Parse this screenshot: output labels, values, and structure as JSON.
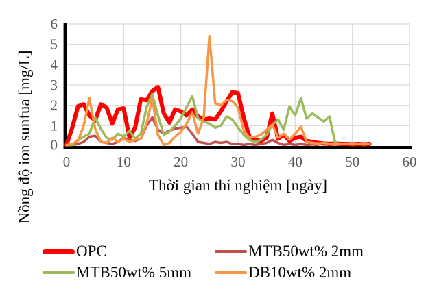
{
  "chart_data": {
    "type": "line",
    "title": "",
    "xlabel": "Thời gian thí nghiệm [ngày]",
    "ylabel": "Nồng độ ion sunfua [mg/L]",
    "xlim": [
      0,
      60
    ],
    "ylim": [
      0,
      6
    ],
    "x_ticks": [
      0,
      10,
      20,
      30,
      40,
      50,
      60
    ],
    "y_ticks": [
      0,
      1,
      2,
      3,
      4,
      5,
      6
    ],
    "grid": true,
    "legend_position": "bottom",
    "style": {
      "grid_color": "#D9D9D9",
      "axis_color": "#000000",
      "tick_color": "#595959",
      "background": "#FFFFFF"
    },
    "x": [
      0,
      1,
      2,
      3,
      4,
      5,
      6,
      7,
      8,
      9,
      10,
      11,
      12,
      13,
      14,
      15,
      16,
      17,
      18,
      19,
      20,
      21,
      22,
      23,
      24,
      25,
      26,
      27,
      28,
      29,
      30,
      31,
      32,
      33,
      34,
      35,
      36,
      37,
      38,
      39,
      40,
      41,
      42,
      43,
      44,
      45,
      46,
      47,
      48,
      49,
      50,
      51,
      52,
      53
    ],
    "series": [
      {
        "name": "OPC",
        "color": "#FF0000",
        "line_width": 6,
        "values": [
          0.05,
          0.9,
          1.95,
          2.05,
          1.5,
          1.25,
          2.05,
          1.9,
          1.1,
          1.8,
          1.85,
          0.4,
          0.9,
          2.3,
          2.25,
          2.7,
          2.9,
          1.6,
          1.15,
          1.8,
          1.7,
          1.5,
          1.8,
          1.45,
          1.3,
          1.35,
          1.3,
          1.7,
          2.2,
          2.65,
          2.6,
          1.4,
          0.45,
          0.3,
          0.25,
          0.4,
          1.6,
          0.35,
          0.55,
          0.25,
          0.4,
          0.45,
          0.25,
          0.2,
          0.15,
          0.12,
          0.1,
          0.12,
          0.1,
          0.1,
          0.08,
          0.1,
          0.08,
          0.1
        ]
      },
      {
        "name": "MTB50wt% 2mm",
        "color": "#C0504D",
        "line_width": 3.5,
        "values": [
          0.02,
          0.05,
          0.1,
          0.2,
          0.45,
          0.5,
          0.2,
          0.15,
          0.1,
          0.2,
          0.4,
          0.3,
          0.25,
          0.35,
          1.0,
          1.4,
          0.8,
          0.6,
          0.75,
          0.85,
          0.9,
          0.95,
          0.6,
          0.2,
          0.15,
          0.1,
          0.2,
          0.15,
          0.2,
          0.1,
          0.1,
          0.05,
          0.1,
          0.05,
          0.1,
          0.15,
          0.3,
          0.15,
          0.05,
          0.1,
          0.05,
          0.1,
          0.05,
          0.08,
          0.05,
          null,
          null,
          null,
          null,
          null,
          null,
          null,
          null,
          null
        ]
      },
      {
        "name": "MTB50wt% 5mm",
        "color": "#9BBB59",
        "line_width": 3.5,
        "values": [
          0.02,
          0.05,
          0.3,
          0.45,
          0.6,
          1.4,
          0.85,
          0.4,
          0.3,
          0.6,
          0.45,
          0.75,
          0.35,
          0.6,
          1.9,
          2.55,
          1.5,
          0.55,
          0.7,
          1.0,
          1.35,
          1.9,
          2.45,
          1.35,
          1.2,
          1.1,
          0.9,
          1.0,
          1.45,
          1.3,
          0.9,
          0.55,
          0.3,
          0.2,
          0.3,
          0.55,
          1.05,
          1.3,
          0.8,
          1.95,
          1.5,
          2.35,
          1.35,
          1.6,
          1.4,
          1.2,
          1.45,
          0.15,
          0.1,
          0.1,
          0.08,
          0.1,
          0.08,
          0.1
        ]
      },
      {
        "name": "DB10wt% 2mm",
        "color": "#F79646",
        "line_width": 3.5,
        "values": [
          0.05,
          0.1,
          0.25,
          1.0,
          2.35,
          0.85,
          0.2,
          0.15,
          0.4,
          0.2,
          0.35,
          0.2,
          0.3,
          0.35,
          1.1,
          2.35,
          0.55,
          0.05,
          0.15,
          0.45,
          0.7,
          1.1,
          1.65,
          0.6,
          1.4,
          5.4,
          2.1,
          2.0,
          2.25,
          2.2,
          1.9,
          0.75,
          0.4,
          0.45,
          0.55,
          0.8,
          1.05,
          0.4,
          0.6,
          0.3,
          0.6,
          0.95,
          0.2,
          0.15,
          0.12,
          0.15,
          0.1,
          0.12,
          0.1,
          0.12,
          0.08,
          0.1,
          0.08,
          0.1
        ]
      }
    ]
  }
}
